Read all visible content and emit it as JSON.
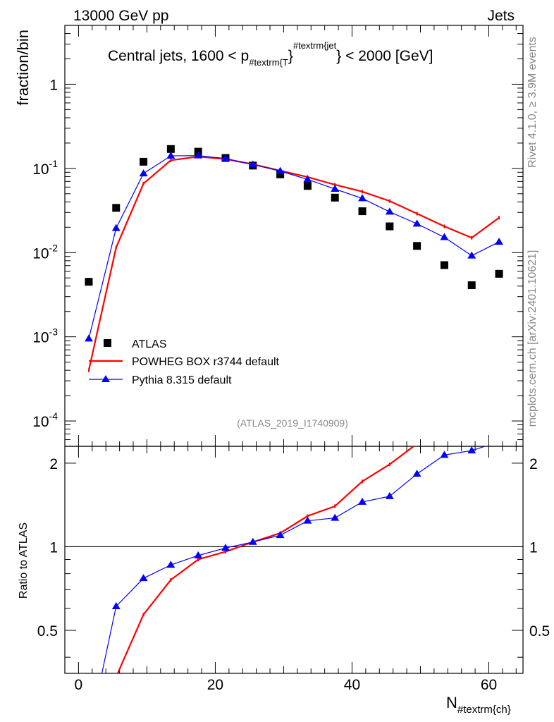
{
  "header": {
    "left_label": "13000 GeV pp",
    "right_label": "Jets",
    "side_rivet": "Rivet 4.1.0, ≥ 3.9M events",
    "side_mcplots": "mcplots.cern.ch [arXiv:2401.10621]",
    "analysis_id": "(ATLAS_2019_I1740909)"
  },
  "chart_data": [
    {
      "type": "scatter",
      "title_parts": {
        "pre": "Central jets, 1600 < p",
        "sub": "#textrm{T",
        "mid": "}",
        "sup": "#textrm{jet",
        "post": "} < 2000 [GeV]"
      },
      "ylabel": "fraction/bin",
      "yscale": "log",
      "ylim": [
        5e-05,
        5
      ],
      "xlim": [
        -2,
        65
      ],
      "ytick_labels": [
        {
          "base": "10",
          "exp": "-4",
          "value": 0.0001
        },
        {
          "base": "10",
          "exp": "-3",
          "value": 0.001
        },
        {
          "base": "10",
          "exp": "-2",
          "value": 0.01
        },
        {
          "base": "10",
          "exp": "-1",
          "value": 0.1
        },
        {
          "base": "1",
          "exp": "",
          "value": 1
        }
      ],
      "legend": [
        {
          "label": "ATLAS",
          "color": "#000000",
          "marker": "square"
        },
        {
          "label": "POWHEG BOX r3744 default",
          "color": "#ff0000",
          "marker": "line"
        },
        {
          "label": "Pythia 8.315 default",
          "color": "#0000ff",
          "marker": "triangle"
        }
      ],
      "series": [
        {
          "name": "ATLAS",
          "color": "#000000",
          "x": [
            1.5,
            5.5,
            9.5,
            13.5,
            17.5,
            21.5,
            25.5,
            29.5,
            33.5,
            37.5,
            41.5,
            45.5,
            49.5,
            53.5,
            57.5,
            61.5
          ],
          "y": [
            0.0045,
            0.034,
            0.12,
            0.17,
            0.158,
            0.133,
            0.108,
            0.085,
            0.062,
            0.045,
            0.031,
            0.0205,
            0.012,
            0.0071,
            0.0041,
            0.0056
          ]
        },
        {
          "name": "POWHEG BOX r3744 default",
          "color": "#ff0000",
          "x": [
            1.5,
            5.5,
            9.5,
            13.5,
            17.5,
            21.5,
            25.5,
            29.5,
            33.5,
            37.5,
            41.5,
            45.5,
            49.5,
            53.5,
            57.5,
            61.5
          ],
          "y": [
            0.0004,
            0.0115,
            0.066,
            0.125,
            0.138,
            0.129,
            0.112,
            0.094,
            0.079,
            0.064,
            0.053,
            0.041,
            0.029,
            0.0205,
            0.015,
            0.026
          ]
        },
        {
          "name": "Pythia 8.315 default",
          "color": "#0000ff",
          "x": [
            1.5,
            5.5,
            9.5,
            13.5,
            17.5,
            21.5,
            25.5,
            29.5,
            33.5,
            37.5,
            41.5,
            45.5,
            49.5,
            53.5,
            57.5,
            61.5
          ],
          "y": [
            0.00095,
            0.0195,
            0.087,
            0.141,
            0.142,
            0.131,
            0.111,
            0.093,
            0.074,
            0.057,
            0.044,
            0.0305,
            0.022,
            0.0152,
            0.0092,
            0.0134
          ]
        }
      ]
    },
    {
      "type": "line",
      "ylabel": "Ratio to ATLAS",
      "xlabel_parts": {
        "main": "N",
        "sub": "#textrm{ch}"
      },
      "ylim": [
        0.35,
        2.3
      ],
      "xlim": [
        -2,
        65
      ],
      "xtick_labels": [
        "0",
        "20",
        "40",
        "60"
      ],
      "xtick_values": [
        0,
        20,
        40,
        60
      ],
      "ytick_labels": [
        "0.5",
        "1",
        "2"
      ],
      "ytick_values": [
        0.5,
        1,
        2
      ],
      "series": [
        {
          "name": "POWHEG BOX r3744 default",
          "color": "#ff0000",
          "x": [
            5.5,
            9.5,
            13.5,
            17.5,
            21.5,
            25.5,
            29.5,
            33.5,
            37.5,
            41.5,
            45.5,
            49.5
          ],
          "y": [
            0.34,
            0.57,
            0.76,
            0.9,
            0.96,
            1.04,
            1.12,
            1.29,
            1.4,
            1.72,
            1.98,
            2.35
          ]
        },
        {
          "name": "Pythia 8.315 default",
          "color": "#0000ff",
          "x": [
            1.5,
            5.5,
            9.5,
            13.5,
            17.5,
            21.5,
            25.5,
            29.5,
            33.5,
            37.5,
            41.5,
            45.5,
            49.5,
            53.5,
            57.5,
            61.5
          ],
          "y": [
            0.21,
            0.61,
            0.77,
            0.86,
            0.93,
            0.99,
            1.04,
            1.1,
            1.24,
            1.27,
            1.45,
            1.52,
            1.83,
            2.14,
            2.22,
            2.39
          ]
        }
      ]
    }
  ]
}
